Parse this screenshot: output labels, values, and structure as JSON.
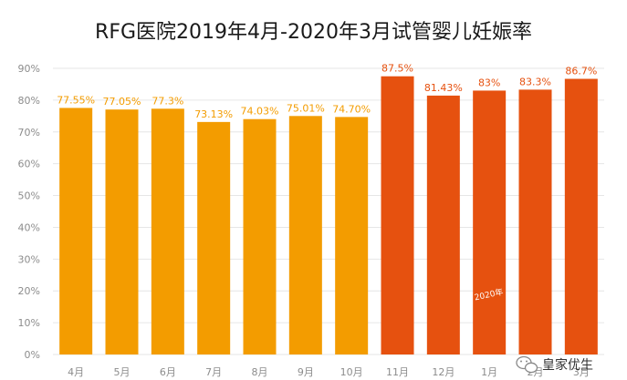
{
  "colors": {
    "before": "#f39c00",
    "after": "#e6510f",
    "background": "#ffffff",
    "grid": "#e6e6e6",
    "axis_text": "#8c8c8c",
    "title_text": "#1a1a1a"
  },
  "chart_data": {
    "type": "bar",
    "title": "RFG医院2019年4月-2020年3月试管婴儿妊娠率",
    "xlabel": "",
    "ylabel": "",
    "ylim": [
      0,
      90
    ],
    "y_ticks": [
      "0%",
      "10%",
      "20%",
      "30%",
      "40%",
      "50%",
      "60%",
      "70%",
      "80%",
      "90%"
    ],
    "grid": true,
    "legend": "none",
    "categories": [
      "4月",
      "5月",
      "6月",
      "7月",
      "8月",
      "9月",
      "10月",
      "11月",
      "12月",
      "1月",
      "2月",
      "3月"
    ],
    "values": [
      77.55,
      77.05,
      77.3,
      73.13,
      74.03,
      75.01,
      74.7,
      87.5,
      81.43,
      83,
      83.3,
      86.7
    ],
    "value_labels": [
      "77.55%",
      "77.05%",
      "77.3%",
      "73.13%",
      "74.03%",
      "75.01%",
      "74.70%",
      "87.5%",
      "81.43%",
      "83%",
      "83.3%",
      "86.7%"
    ],
    "bar_color_group": [
      "before",
      "before",
      "before",
      "before",
      "before",
      "before",
      "before",
      "after",
      "after",
      "after",
      "after",
      "after"
    ],
    "annotation": {
      "text": "2020年",
      "category_index": 9,
      "value": 18
    }
  },
  "watermark": {
    "icon": "wechat-icon",
    "text": "皇家优生"
  }
}
